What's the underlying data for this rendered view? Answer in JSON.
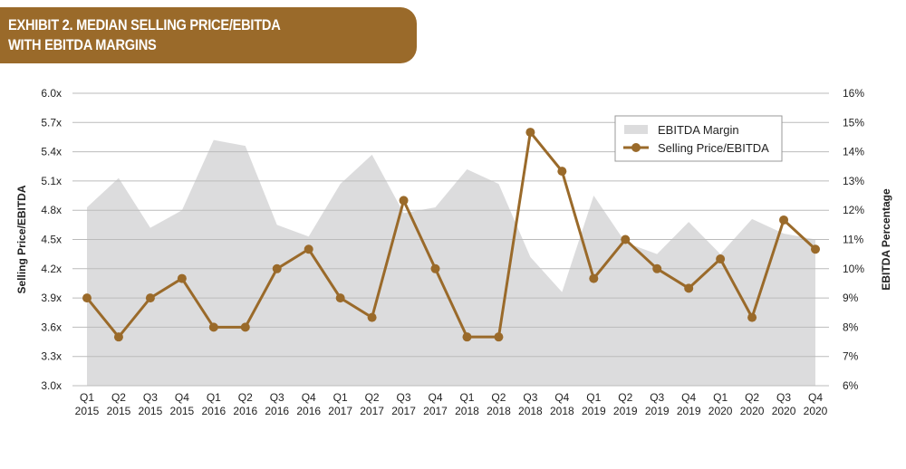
{
  "header": {
    "line1": "EXHIBIT 2. MEDIAN SELLING PRICE/EBITDA",
    "line2": "WITH EBITDA MARGINS"
  },
  "colors": {
    "banner": "#9a6a2a",
    "line": "#9a6a2a",
    "area": "#dcdcdd"
  },
  "chart_data": {
    "type": "line",
    "title": "EXHIBIT 2. MEDIAN SELLING PRICE/EBITDA WITH EBITDA MARGINS",
    "ylabel": "Selling Price/EBITDA",
    "y2label": "EBITDA Percentage",
    "ylim": [
      3.0,
      6.0
    ],
    "y2lim": [
      6,
      16
    ],
    "yticks": [
      "3.0x",
      "3.3x",
      "3.6x",
      "3.9x",
      "4.2x",
      "4.5x",
      "4.8x",
      "5.1x",
      "5.4x",
      "5.7x",
      "6.0x"
    ],
    "y2ticks": [
      "6%",
      "7%",
      "8%",
      "9%",
      "10%",
      "11%",
      "12%",
      "13%",
      "14%",
      "15%",
      "16%"
    ],
    "grid": true,
    "legend": "top-right",
    "categories": [
      [
        "Q1",
        "2015"
      ],
      [
        "Q2",
        "2015"
      ],
      [
        "Q3",
        "2015"
      ],
      [
        "Q4",
        "2015"
      ],
      [
        "Q1",
        "2016"
      ],
      [
        "Q2",
        "2016"
      ],
      [
        "Q3",
        "2016"
      ],
      [
        "Q4",
        "2016"
      ],
      [
        "Q1",
        "2017"
      ],
      [
        "Q2",
        "2017"
      ],
      [
        "Q3",
        "2017"
      ],
      [
        "Q4",
        "2017"
      ],
      [
        "Q1",
        "2018"
      ],
      [
        "Q2",
        "2018"
      ],
      [
        "Q3",
        "2018"
      ],
      [
        "Q4",
        "2018"
      ],
      [
        "Q1",
        "2019"
      ],
      [
        "Q2",
        "2019"
      ],
      [
        "Q3",
        "2019"
      ],
      [
        "Q4",
        "2019"
      ],
      [
        "Q1",
        "2020"
      ],
      [
        "Q2",
        "2020"
      ],
      [
        "Q3",
        "2020"
      ],
      [
        "Q4",
        "2020"
      ]
    ],
    "series": [
      {
        "name": "EBITDA Margin",
        "type": "area",
        "axis": "right",
        "values": [
          12.1,
          13.1,
          11.4,
          12.0,
          14.4,
          14.2,
          11.5,
          11.1,
          12.9,
          13.9,
          11.9,
          12.1,
          13.4,
          12.9,
          10.4,
          9.2,
          12.5,
          10.9,
          10.5,
          11.6,
          10.5,
          11.7,
          11.2,
          11.0
        ]
      },
      {
        "name": "Selling Price/EBITDA",
        "type": "line",
        "axis": "left",
        "values": [
          3.9,
          3.5,
          3.9,
          4.1,
          3.6,
          3.6,
          4.2,
          4.4,
          3.9,
          3.7,
          4.9,
          4.2,
          3.5,
          3.5,
          5.6,
          5.2,
          4.1,
          4.5,
          4.2,
          4.0,
          4.3,
          3.7,
          4.7,
          4.4
        ]
      }
    ]
  }
}
